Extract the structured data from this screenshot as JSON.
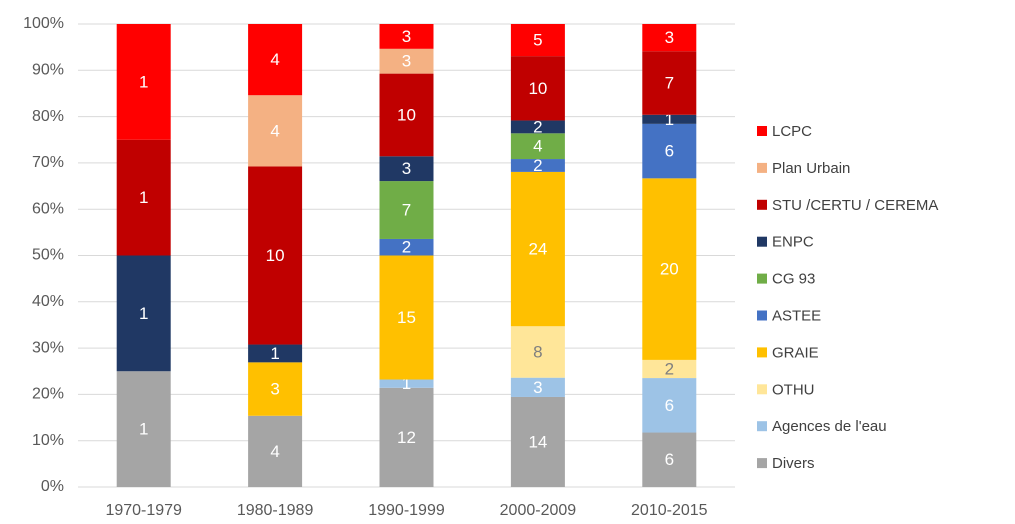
{
  "chart_data": {
    "type": "stacked_percent_bar",
    "categories": [
      "1970-1979",
      "1980-1989",
      "1990-1999",
      "2000-2009",
      "2010-2015"
    ],
    "series": [
      {
        "name": "Divers",
        "color": "#a5a5a5",
        "values": [
          1,
          4,
          12,
          14,
          6
        ]
      },
      {
        "name": "Agences de l'eau",
        "color": "#9dc3e6",
        "values": [
          null,
          null,
          1,
          3,
          6
        ]
      },
      {
        "name": "OTHU",
        "color": "#ffe699",
        "values": [
          null,
          null,
          null,
          8,
          2
        ]
      },
      {
        "name": "GRAIE",
        "color": "#ffc000",
        "values": [
          null,
          3,
          15,
          24,
          20
        ]
      },
      {
        "name": "ASTEE",
        "color": "#4472c4",
        "values": [
          null,
          null,
          2,
          2,
          6
        ]
      },
      {
        "name": "CG 93",
        "color": "#70ad47",
        "values": [
          null,
          null,
          7,
          4,
          null
        ]
      },
      {
        "name": "ENPC",
        "color": "#203864",
        "values": [
          1,
          1,
          3,
          2,
          1
        ]
      },
      {
        "name": "STU /CERTU / CEREMA",
        "color": "#c00000",
        "values": [
          1,
          10,
          10,
          10,
          7
        ]
      },
      {
        "name": "Plan Urbain",
        "color": "#f4b183",
        "values": [
          null,
          4,
          3,
          null,
          null
        ]
      },
      {
        "name": "LCPC",
        "color": "#ff0000",
        "values": [
          1,
          4,
          3,
          5,
          3
        ]
      }
    ],
    "ylim": [
      0,
      100
    ],
    "yticks": [
      {
        "value": 0,
        "label": "0%"
      },
      {
        "value": 10,
        "label": "10%"
      },
      {
        "value": 20,
        "label": "20%"
      },
      {
        "value": 30,
        "label": "30%"
      },
      {
        "value": 40,
        "label": "40%"
      },
      {
        "value": 50,
        "label": "50%"
      },
      {
        "value": 60,
        "label": "60%"
      },
      {
        "value": 70,
        "label": "70%"
      },
      {
        "value": 80,
        "label": "80%"
      },
      {
        "value": 90,
        "label": "90%"
      },
      {
        "value": 100,
        "label": "100%"
      }
    ],
    "grid": true,
    "legend": "right"
  }
}
